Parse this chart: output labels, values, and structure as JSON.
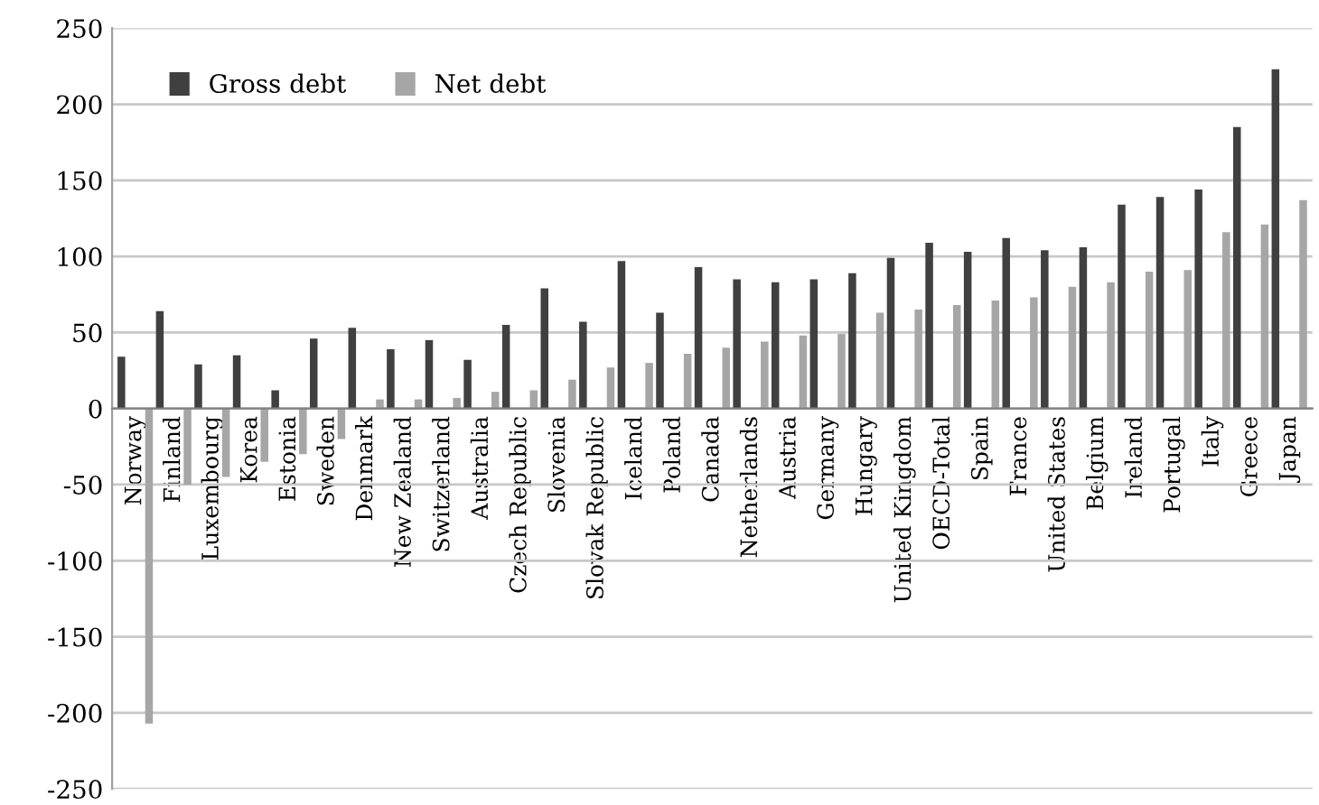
{
  "chart_data": {
    "type": "bar",
    "categories": [
      "Norway",
      "Finland",
      "Luxembourg",
      "Korea",
      "Estonia",
      "Sweden",
      "Denmark",
      "New Zealand",
      "Switzerland",
      "Australia",
      "Czech Republic",
      "Slovenia",
      "Slovak Republic",
      "Iceland",
      "Poland",
      "Canada",
      "Netherlands",
      "Austria",
      "Germany",
      "Hungary",
      "United Kingdom",
      "OECD-Total",
      "Spain",
      "France",
      "United States",
      "Belgium",
      "Ireland",
      "Portugal",
      "Italy",
      "Greece",
      "Japan"
    ],
    "series": [
      {
        "name": "Gross debt",
        "color": "#404040",
        "values": [
          34,
          64,
          29,
          35,
          12,
          46,
          53,
          39,
          45,
          32,
          55,
          79,
          57,
          97,
          63,
          93,
          85,
          83,
          85,
          89,
          99,
          109,
          103,
          112,
          104,
          106,
          134,
          139,
          144,
          185,
          223
        ]
      },
      {
        "name": "Net debt",
        "color": "#a6a6a6",
        "values": [
          -207,
          -50,
          -45,
          -35,
          -30,
          -20,
          6,
          6,
          7,
          11,
          12,
          19,
          27,
          30,
          36,
          40,
          44,
          48,
          49,
          63,
          65,
          68,
          71,
          73,
          80,
          83,
          90,
          91,
          116,
          121,
          137
        ]
      }
    ],
    "ylim": [
      -250,
      250
    ],
    "yticks": [
      -250,
      -200,
      -150,
      -100,
      -50,
      0,
      50,
      100,
      150,
      200,
      250
    ],
    "grid": "y",
    "legend": "top left"
  }
}
